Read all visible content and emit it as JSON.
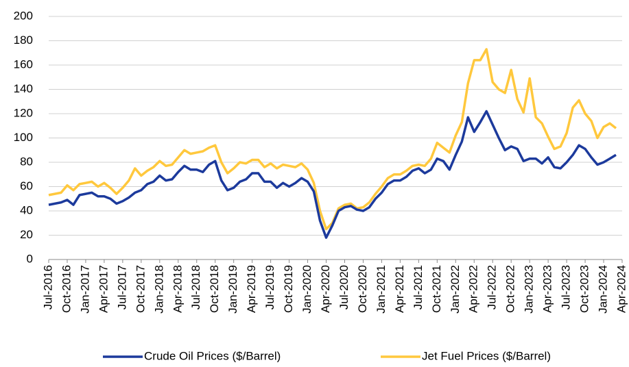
{
  "chart_data": {
    "type": "line",
    "categories": [
      "Jul-2016",
      null,
      null,
      "Oct-2016",
      null,
      null,
      "Jan-2017",
      null,
      null,
      "Apr-2017",
      null,
      null,
      "Jul-2017",
      null,
      null,
      "Oct-2017",
      null,
      null,
      "Jan-2018",
      null,
      null,
      "Apr-2018",
      null,
      null,
      "Jul-2018",
      null,
      null,
      "Oct-2018",
      null,
      null,
      "Jan-2019",
      null,
      null,
      "Apr-2019",
      null,
      null,
      "Jul-2019",
      null,
      null,
      "Oct-2019",
      null,
      null,
      "Jan-2020",
      null,
      null,
      "Apr-2020",
      null,
      null,
      "Jul-2020",
      null,
      null,
      "Oct-2020",
      null,
      null,
      "Jan-2021",
      null,
      null,
      "Apr-2021",
      null,
      null,
      "Jul-2021",
      null,
      null,
      "Oct-2021",
      null,
      null,
      "Jan-2022",
      null,
      null,
      "Apr-2022",
      null,
      null,
      "Jul-2022",
      null,
      null,
      "Oct-2022",
      null,
      null,
      "Jan-2023",
      null,
      null,
      "Apr-2023",
      null,
      null,
      "Jul-2023",
      null,
      null,
      "Oct-2023",
      null,
      null,
      "Jan-2024",
      null,
      null,
      "Apr-2024"
    ],
    "series": [
      {
        "name": "Crude Oil Prices ($/Barrel)",
        "color": "#1c3a9c",
        "values": [
          45,
          46,
          47,
          49,
          45,
          53,
          54,
          55,
          52,
          52,
          50,
          46,
          48,
          51,
          55,
          57,
          62,
          64,
          69,
          65,
          66,
          72,
          77,
          74,
          74,
          72,
          78,
          81,
          65,
          57,
          59,
          64,
          66,
          71,
          71,
          64,
          64,
          59,
          63,
          60,
          63,
          67,
          64,
          56,
          32,
          18,
          28,
          40,
          43,
          44,
          41,
          40,
          43,
          50,
          55,
          62,
          65,
          65,
          68,
          73,
          75,
          71,
          74,
          83,
          81,
          74,
          86,
          97,
          117,
          105,
          113,
          122,
          111,
          100,
          90,
          93,
          91,
          81,
          83,
          83,
          79,
          84,
          76,
          75,
          80,
          86,
          94,
          91,
          84,
          78,
          80,
          83,
          86,
          null
        ]
      },
      {
        "name": "Jet Fuel Prices ($/Barrel)",
        "color": "#ffc83d",
        "values": [
          53,
          54,
          55,
          61,
          57,
          62,
          63,
          64,
          60,
          63,
          59,
          54,
          59,
          65,
          75,
          69,
          73,
          76,
          81,
          77,
          78,
          84,
          90,
          87,
          88,
          89,
          92,
          94,
          80,
          71,
          75,
          80,
          79,
          82,
          82,
          76,
          79,
          75,
          78,
          77,
          76,
          79,
          74,
          63,
          40,
          25,
          30,
          42,
          45,
          46,
          42,
          43,
          47,
          54,
          60,
          67,
          70,
          70,
          73,
          77,
          78,
          77,
          83,
          96,
          92,
          88,
          102,
          113,
          145,
          164,
          164,
          173,
          146,
          140,
          137,
          156,
          132,
          121,
          149,
          117,
          112,
          101,
          91,
          93,
          104,
          125,
          131,
          120,
          114,
          100,
          109,
          112,
          108,
          null
        ]
      }
    ],
    "ylim": [
      0,
      200
    ],
    "yticks": [
      0,
      20,
      40,
      60,
      80,
      100,
      120,
      140,
      160,
      180,
      200
    ],
    "grid": true
  }
}
